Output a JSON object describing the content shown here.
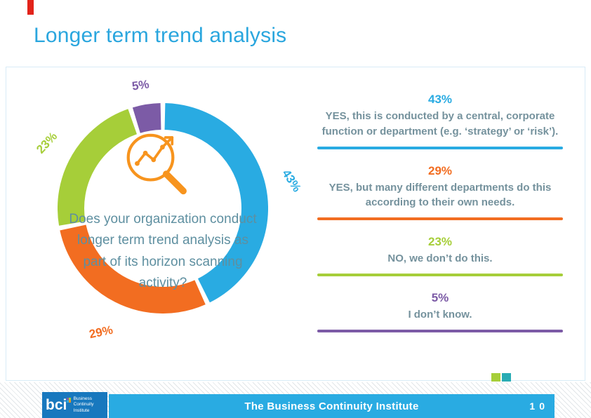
{
  "slide": {
    "title": "Longer term trend analysis",
    "footer": {
      "text": "The Business Continuity Institute",
      "page_number": "10"
    },
    "logo": {
      "acronym": "bci",
      "line1": "Business Continuity",
      "line2": "Institute"
    },
    "deco_squares": [
      "#A6CE39",
      "#29ACB4"
    ],
    "accent_red": "#E2231A",
    "title_color": "#2AA6DE",
    "footer_bar_color": "#29ABE2"
  },
  "chart_data": {
    "type": "pie",
    "donut": true,
    "question": "Does your organization conduct longer term trend analysis as part of its horizon scanning activity?",
    "question_color": "#5E8FA0",
    "center_icon": "magnifier-trend-icon",
    "center_icon_color": "#F7941E",
    "start_angle_deg": 0,
    "direction": "clockwise",
    "total": 100,
    "legend_position": "right",
    "segments": [
      {
        "pct_label": "43%",
        "value": 43,
        "color": "#29ABE2",
        "legend": "YES, this is conducted by a central, corporate function or department (e.g. ‘strategy’ or ‘risk’)."
      },
      {
        "pct_label": "29%",
        "value": 29,
        "color": "#F26D21",
        "legend": "YES, but many different departments do this according to their own needs."
      },
      {
        "pct_label": "23%",
        "value": 23,
        "color": "#A6CE39",
        "legend": "NO, we don’t do this."
      },
      {
        "pct_label": "5%",
        "value": 5,
        "color": "#7C5BA6",
        "legend": "I don’t know."
      }
    ]
  }
}
